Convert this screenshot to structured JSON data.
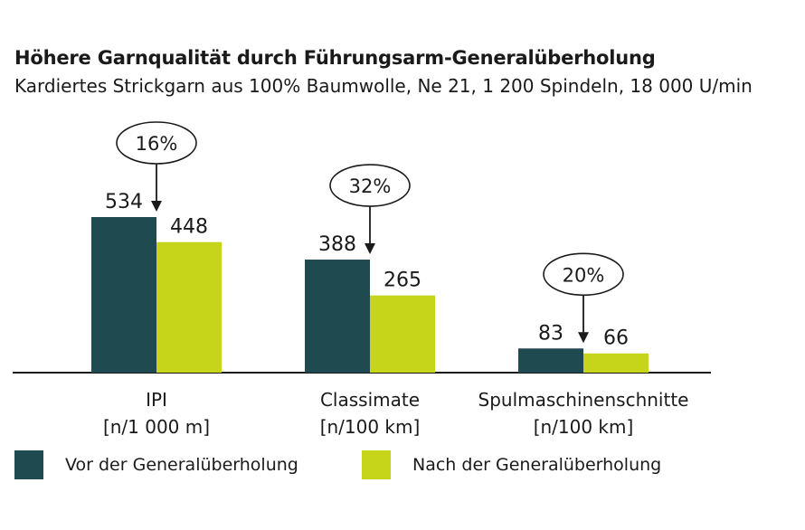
{
  "chart_data": {
    "type": "bar",
    "title": "Höhere Garnqualität durch Führungsarm-Generalüberholung",
    "subtitle": "Kardiertes Strickgarn aus 100% Baumwolle, Ne 21, 1 200 Spindeln, 18 000 U/min",
    "categories": [
      {
        "name": "IPI",
        "unit": "[n/1 000 m]"
      },
      {
        "name": "Classimate",
        "unit": "[n/100 km]"
      },
      {
        "name": "Spulmaschinenschnitte",
        "unit": "[n/100 km]"
      }
    ],
    "series": [
      {
        "name": "Vor der Generalüberholung",
        "color": "#1f4a50",
        "values": [
          534,
          388,
          83
        ],
        "labels": [
          "534",
          "388",
          "83"
        ]
      },
      {
        "name": "Nach der Generalüberholung",
        "color": "#c6d51a",
        "values": [
          448,
          265,
          66
        ],
        "labels": [
          "448",
          "265",
          "66"
        ]
      }
    ],
    "reductions": [
      "16%",
      "32%",
      "20%"
    ],
    "ylim": [
      0,
      534
    ],
    "grid": false,
    "legend_position": "bottom"
  }
}
